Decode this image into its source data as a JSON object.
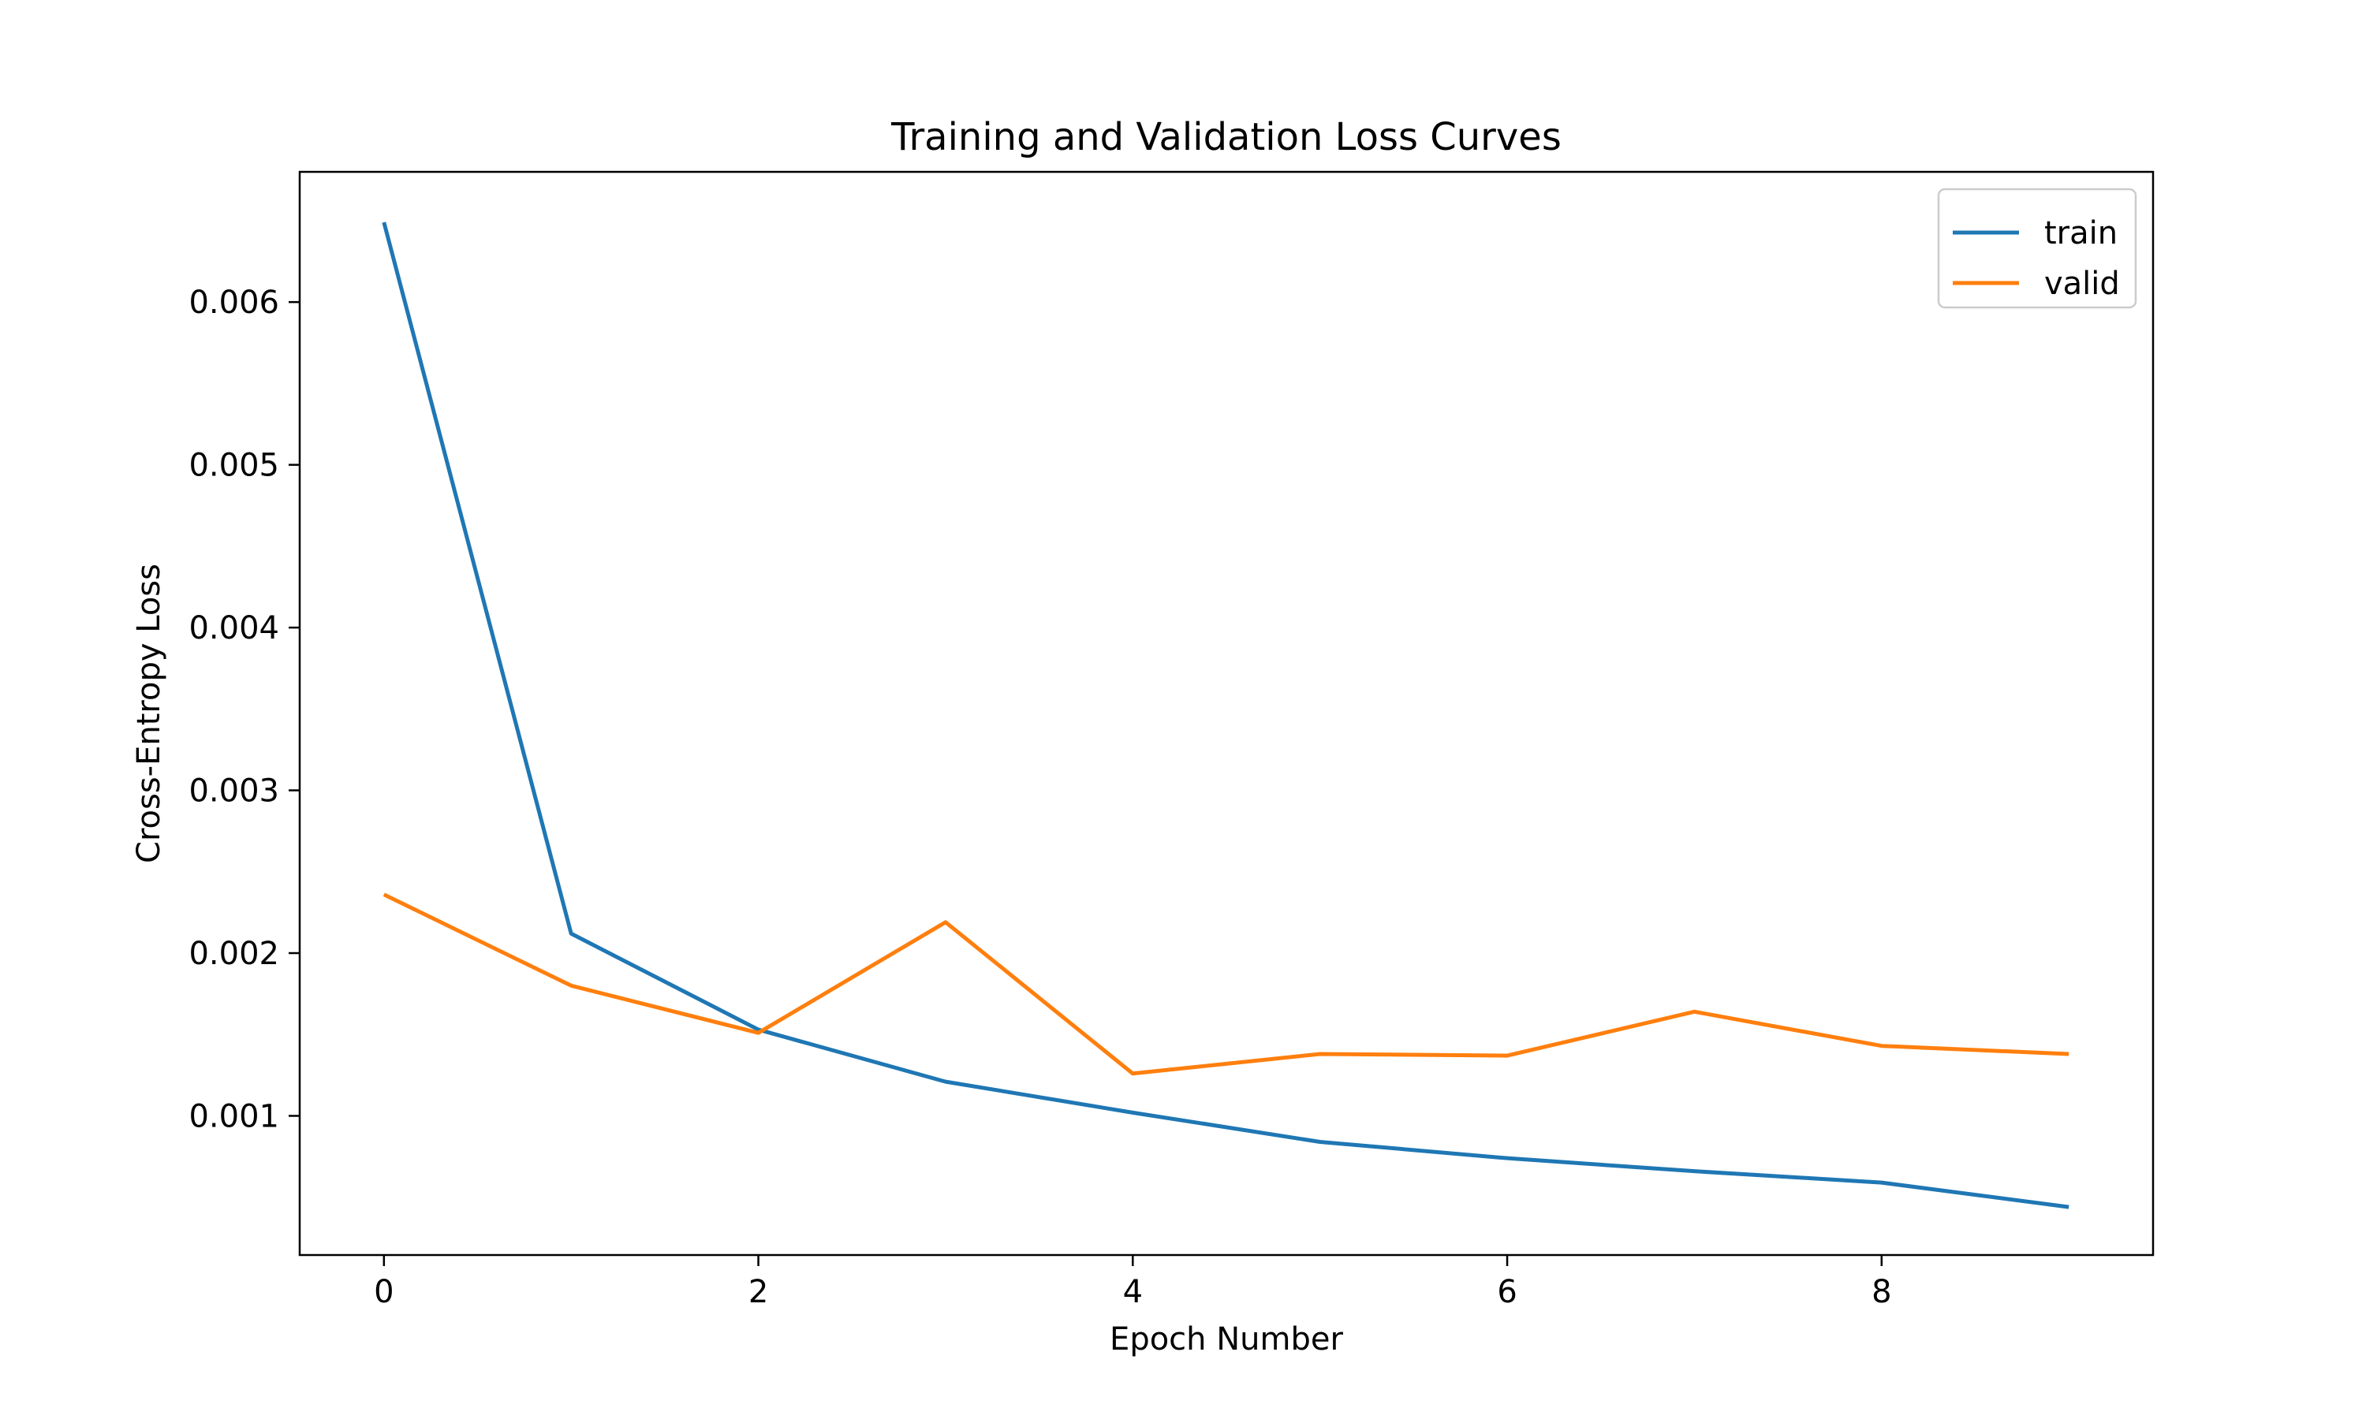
{
  "chart_data": {
    "type": "line",
    "title": "Training and Validation Loss Curves",
    "xlabel": "Epoch Number",
    "ylabel": "Cross-Entropy Loss",
    "x": [
      0,
      1,
      2,
      3,
      4,
      5,
      6,
      7,
      8,
      9
    ],
    "xticks": [
      0,
      2,
      4,
      6,
      8
    ],
    "xtick_labels": [
      "0",
      "2",
      "4",
      "6",
      "8"
    ],
    "yticks": [
      0.001,
      0.002,
      0.003,
      0.004,
      0.005,
      0.006
    ],
    "ytick_labels": [
      "0.001",
      "0.002",
      "0.003",
      "0.004",
      "0.005",
      "0.006"
    ],
    "xlim": [
      -0.45,
      9.45
    ],
    "ylim": [
      0.000145,
      0.0068
    ],
    "grid": false,
    "legend_position": "top-right",
    "series": [
      {
        "name": "train",
        "color": "#1f77b4",
        "values": [
          0.00649,
          0.00212,
          0.00153,
          0.00121,
          0.00102,
          0.00084,
          0.00074,
          0.00066,
          0.00059,
          0.00044
        ]
      },
      {
        "name": "valid",
        "color": "#ff7f0e",
        "values": [
          0.00236,
          0.0018,
          0.00151,
          0.00219,
          0.00126,
          0.00138,
          0.00137,
          0.00164,
          0.00143,
          0.00138
        ]
      }
    ]
  }
}
